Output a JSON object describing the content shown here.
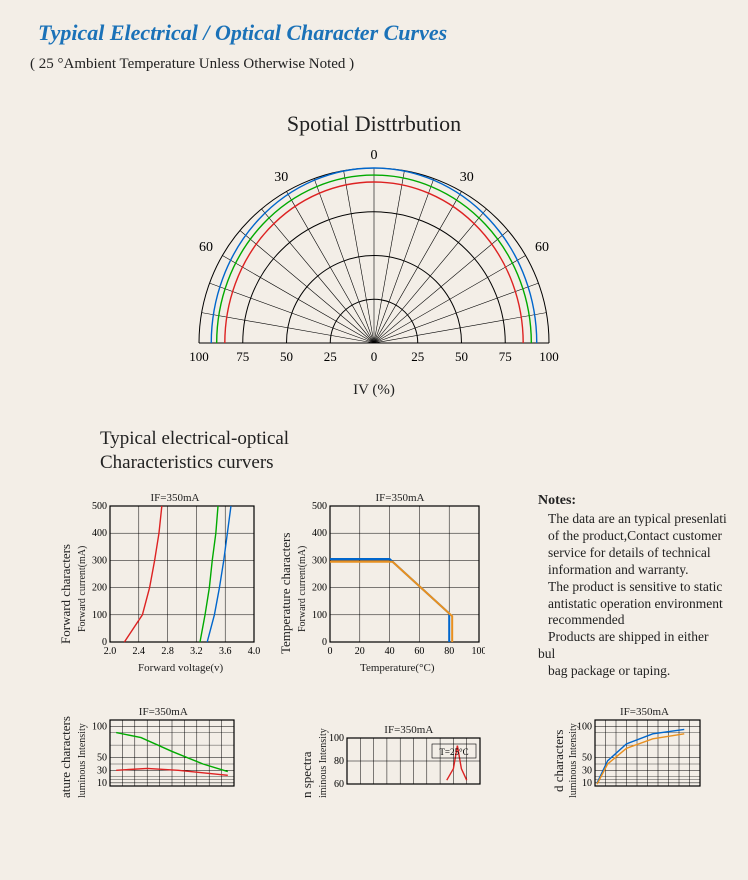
{
  "header": {
    "title": "Typical Electrical / Optical Character Curves",
    "subtitle": "( 25 °Ambient Temperature Unless Otherwise Noted )"
  },
  "polar": {
    "title": "Spotial Disttrbution",
    "axis_label": "IV (%)",
    "angle_labels": [
      "0",
      "30",
      "30",
      "60",
      "60"
    ],
    "x_ticks": [
      "100",
      "75",
      "50",
      "25",
      "0",
      "25",
      "50",
      "75",
      "100"
    ],
    "rings": [
      25,
      50,
      75,
      100
    ],
    "spoke_angles_deg": [
      0,
      10,
      20,
      30,
      40,
      50,
      60,
      70,
      80,
      90,
      100,
      110,
      120,
      130,
      140,
      150,
      160,
      170,
      180
    ],
    "curves": [
      {
        "color": "#d22",
        "r_top": 92,
        "r_side": 55
      },
      {
        "color": "#0a0",
        "r_top": 96,
        "r_side": 58
      },
      {
        "color": "#06c",
        "r_top": 100,
        "r_side": 60
      }
    ],
    "grid_color": "#000",
    "grid_width": 1
  },
  "section_title": "Typical electrical-optical\nCharacteristics curvers",
  "chart1": {
    "if_label": "IF=350mA",
    "vlabel_big": "Forward characters",
    "vlabel_small": "Forward current(mA)",
    "hlabel": "Forward voltage(v)",
    "x_ticks": [
      "2.0",
      "2.4",
      "2.8",
      "3.2",
      "3.6",
      "4.0"
    ],
    "y_ticks": [
      "0",
      "100",
      "200",
      "300",
      "400",
      "500"
    ],
    "xlim": [
      2.0,
      4.0
    ],
    "ylim": [
      0,
      500
    ],
    "grid_color": "#000",
    "curves": [
      {
        "color": "#d22",
        "points": [
          [
            2.2,
            0
          ],
          [
            2.45,
            100
          ],
          [
            2.55,
            200
          ],
          [
            2.62,
            300
          ],
          [
            2.68,
            400
          ],
          [
            2.72,
            500
          ]
        ]
      },
      {
        "color": "#0a0",
        "points": [
          [
            3.25,
            0
          ],
          [
            3.32,
            100
          ],
          [
            3.38,
            200
          ],
          [
            3.42,
            300
          ],
          [
            3.47,
            400
          ],
          [
            3.5,
            500
          ]
        ]
      },
      {
        "color": "#06c",
        "points": [
          [
            3.35,
            0
          ],
          [
            3.45,
            100
          ],
          [
            3.52,
            200
          ],
          [
            3.58,
            300
          ],
          [
            3.63,
            400
          ],
          [
            3.68,
            500
          ]
        ]
      }
    ]
  },
  "chart2": {
    "if_label": "IF=350mA",
    "vlabel_big": "Temperature characters",
    "vlabel_small": "Forward current(mA)",
    "hlabel": "Temperature(°C)",
    "x_ticks": [
      "0",
      "20",
      "40",
      "60",
      "80",
      "100"
    ],
    "y_ticks": [
      "0",
      "100",
      "200",
      "300",
      "400",
      "500"
    ],
    "xlim": [
      0,
      100
    ],
    "ylim": [
      0,
      500
    ],
    "grid_color": "#000",
    "curves": [
      {
        "color": "#06c",
        "points": [
          [
            0,
            305
          ],
          [
            40,
            305
          ],
          [
            80,
            105
          ],
          [
            80,
            0
          ]
        ],
        "width": 2
      },
      {
        "color": "#e89020",
        "points": [
          [
            0,
            295
          ],
          [
            42,
            295
          ],
          [
            82,
            95
          ],
          [
            82,
            0
          ]
        ],
        "width": 2
      }
    ]
  },
  "notes": {
    "heading": "Notes:",
    "lines": [
      "The data are an typical presenlati",
      "of the product,Contact customer",
      "service for details of technical",
      "information and warranty.",
      "The product is sensitive to static",
      "antistatic operation environment",
      "recommended",
      "Products are shipped in either bul",
      "bag package or taping."
    ]
  },
  "chart3": {
    "if_label": "IF=350mA",
    "vlabel_big": "ature characters",
    "vlabel_small": "luminous Intensity",
    "y_ticks": [
      "10",
      "30",
      "50",
      "100"
    ],
    "ylim": [
      5,
      110
    ],
    "xlim": [
      0,
      100
    ],
    "grid_color": "#000",
    "curves": [
      {
        "color": "#0a0",
        "points": [
          [
            5,
            90
          ],
          [
            25,
            82
          ],
          [
            50,
            60
          ],
          [
            75,
            40
          ],
          [
            95,
            28
          ]
        ]
      },
      {
        "color": "#d22",
        "points": [
          [
            5,
            30
          ],
          [
            30,
            33
          ],
          [
            55,
            30
          ],
          [
            80,
            25
          ],
          [
            95,
            22
          ]
        ]
      }
    ]
  },
  "chart4": {
    "if_label": "IF=350mA",
    "t_label": "T=25°C",
    "vlabel_big": "n spectra",
    "vlabel_small": "iminous Intensity",
    "y_ticks": [
      "60",
      "80",
      "100"
    ],
    "ylim": [
      50,
      110
    ],
    "xlim": [
      0,
      100
    ],
    "grid_color": "#000",
    "curves": [
      {
        "color": "#d22",
        "points": [
          [
            75,
            55
          ],
          [
            80,
            70
          ],
          [
            83,
            100
          ],
          [
            86,
            70
          ],
          [
            90,
            55
          ]
        ]
      }
    ]
  },
  "chart5": {
    "if_label": "IF=350mA",
    "vlabel_big": "d characters",
    "vlabel_small": "luminous Intensity",
    "y_ticks": [
      "10",
      "30",
      "50",
      "100"
    ],
    "ylim": [
      5,
      110
    ],
    "xlim": [
      0,
      100
    ],
    "grid_color": "#000",
    "curves": [
      {
        "color": "#06c",
        "points": [
          [
            2,
            10
          ],
          [
            12,
            45
          ],
          [
            30,
            72
          ],
          [
            55,
            88
          ],
          [
            85,
            95
          ]
        ]
      },
      {
        "color": "#e89020",
        "points": [
          [
            2,
            8
          ],
          [
            12,
            40
          ],
          [
            30,
            65
          ],
          [
            55,
            80
          ],
          [
            85,
            88
          ]
        ]
      }
    ]
  }
}
